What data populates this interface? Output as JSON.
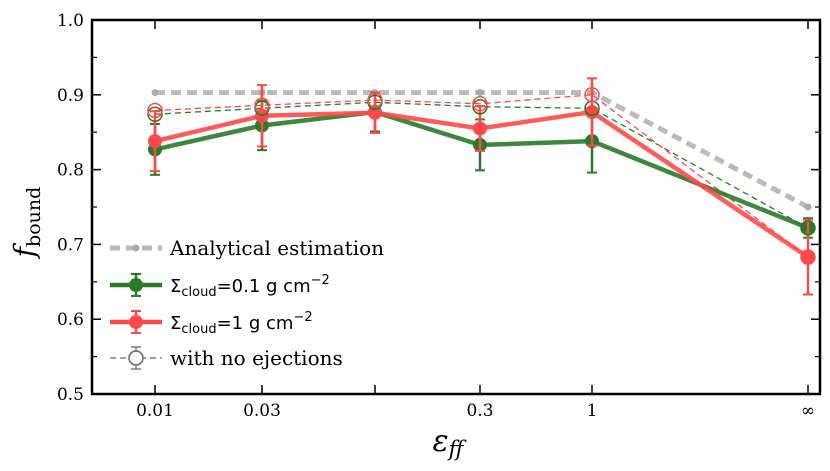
{
  "chart_data": {
    "type": "line",
    "title": "",
    "xlabel": "ε",
    "xlabel_sub": "ff",
    "ylabel": "f",
    "ylabel_sub": "bound",
    "xscale": "log",
    "ylim": [
      0.5,
      1.0
    ],
    "yticks": [
      "0.5",
      "0.6",
      "0.7",
      "0.8",
      "0.9",
      "1.0"
    ],
    "xtick_labels": [
      "0.01",
      "0.03",
      "0.3",
      "1",
      "∞"
    ],
    "x_positions": [
      "0.01",
      "0.03",
      "0.1",
      "0.3",
      "1",
      "∞"
    ],
    "grid": false,
    "legend_position": "lower-left",
    "series": [
      {
        "name": "Analytical estimation",
        "color": "#aaaaaa",
        "style": "dashed",
        "values": [
          0.903,
          0.903,
          0.903,
          0.903,
          0.903,
          0.75
        ]
      },
      {
        "name": "Σcloud = 0.1 g cm−2",
        "legend_main": "Σ",
        "legend_sub": "cloud",
        "legend_rest": "=0.1 g cm",
        "legend_sup": "−2",
        "color": "#2a7a2a",
        "style": "solid",
        "values": [
          0.827,
          0.859,
          0.877,
          0.833,
          0.838,
          0.722
        ],
        "errors": [
          0.034,
          0.033,
          0.026,
          0.034,
          0.042,
          0.013
        ]
      },
      {
        "name": "Σcloud = 1 g cm−2",
        "legend_main": "Σ",
        "legend_sub": "cloud",
        "legend_rest": "=1 g cm",
        "legend_sup": "−2",
        "color": "#ff4a4a",
        "style": "solid",
        "values": [
          0.838,
          0.872,
          0.876,
          0.855,
          0.877,
          0.683
        ],
        "errors": [
          0.04,
          0.041,
          0.027,
          0.03,
          0.045,
          0.05
        ]
      },
      {
        "name": "with no ejections (Σcloud = 0.1 g cm−2)",
        "color": "#2a7a2a",
        "style": "dashed-open",
        "values": [
          0.874,
          0.882,
          0.89,
          0.884,
          0.882,
          0.722
        ]
      },
      {
        "name": "with no ejections (Σcloud = 1 g cm−2)",
        "color": "#ff4a4a",
        "style": "dashed-open",
        "values": [
          0.879,
          0.886,
          0.893,
          0.888,
          0.9,
          0.683
        ]
      }
    ],
    "legend": [
      {
        "label": "Analytical estimation",
        "kind": "analytical"
      },
      {
        "label": "",
        "kind": "series",
        "series": 1
      },
      {
        "label": "",
        "kind": "series",
        "series": 2
      },
      {
        "label": "with no ejections",
        "kind": "open"
      }
    ]
  }
}
